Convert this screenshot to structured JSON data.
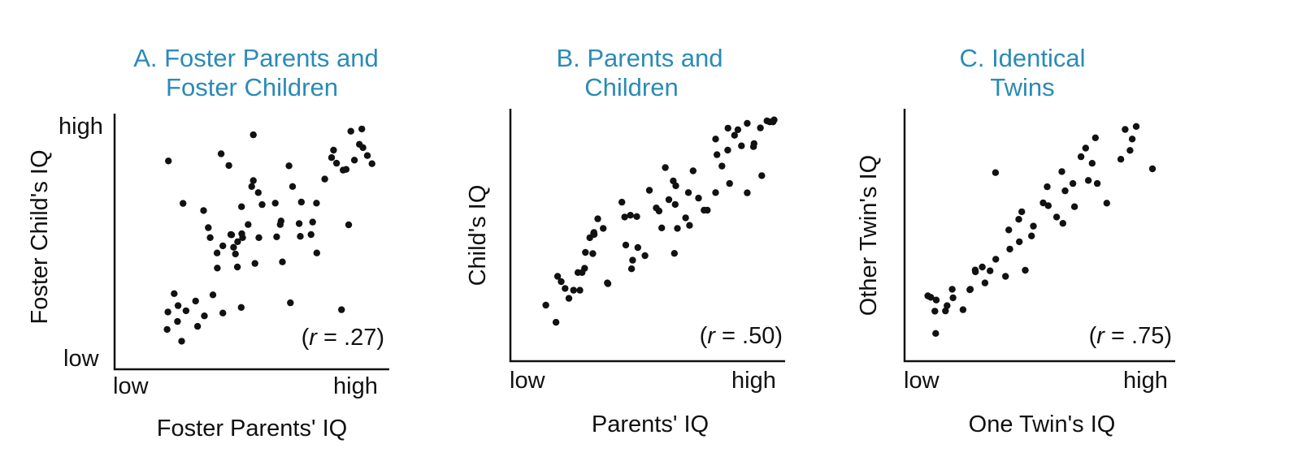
{
  "colors": {
    "title": "#2a8bb6",
    "ink": "#111111"
  },
  "chart_data": [
    {
      "type": "scatter",
      "title_lines": [
        "A. Foster Parents and",
        "Foster Children"
      ],
      "xlabel": "Foster Parents' IQ",
      "ylabel": "Foster Child's IQ",
      "xticks": [
        "low",
        "high"
      ],
      "yticks": [
        "high",
        "low"
      ],
      "annotation": {
        "prefix": "(",
        "var": "r",
        "value": " = .27)"
      },
      "xlim": [
        0,
        100
      ],
      "ylim": [
        0,
        100
      ],
      "points": [
        [
          19.6,
          81.5
        ],
        [
          22.9,
          18.7
        ],
        [
          21.7,
          29.6
        ],
        [
          24.9,
          64.9
        ],
        [
          23.1,
          24.9
        ],
        [
          24.4,
          11.0
        ],
        [
          19.1,
          15.6
        ],
        [
          19.4,
          22.4
        ],
        [
          38.8,
          84.3
        ],
        [
          41.6,
          79.7
        ],
        [
          46.2,
          63.6
        ],
        [
          48.6,
          56.6
        ],
        [
          44.8,
          49.9
        ],
        [
          50.5,
          73.8
        ],
        [
          52.3,
          69.1
        ],
        [
          50.5,
          91.7
        ],
        [
          32.4,
          62.1
        ],
        [
          34.1,
          55.4
        ],
        [
          34.8,
          51.5
        ],
        [
          37.3,
          45.5
        ],
        [
          37.4,
          39.6
        ],
        [
          39.4,
          48.3
        ],
        [
          42.3,
          52.7
        ],
        [
          42.6,
          52.6
        ],
        [
          43.3,
          47.7
        ],
        [
          44.0,
          45.1
        ],
        [
          44.7,
          40.0
        ],
        [
          46.3,
          53.0
        ],
        [
          46.6,
          51.5
        ],
        [
          52.5,
          51.5
        ],
        [
          53.7,
          64.4
        ],
        [
          60.3,
          56.6
        ],
        [
          59.0,
          51.8
        ],
        [
          61.1,
          42.0
        ],
        [
          63.5,
          79.6
        ],
        [
          64.8,
          71.5
        ],
        [
          68.0,
          65.4
        ],
        [
          67.6,
          52.0
        ],
        [
          71.5,
          52.7
        ],
        [
          72.1,
          57.6
        ],
        [
          73.6,
          45.5
        ],
        [
          76.5,
          74.4
        ],
        [
          79.7,
          85.7
        ],
        [
          79.0,
          82.8
        ],
        [
          80.8,
          80.6
        ],
        [
          83.2,
          77.9
        ],
        [
          84.3,
          78.2
        ],
        [
          85.2,
          56.5
        ],
        [
          87.3,
          81.8
        ],
        [
          89.1,
          88.0
        ],
        [
          86.0,
          93.1
        ],
        [
          90.4,
          86.7
        ],
        [
          92.0,
          83.6
        ],
        [
          93.7,
          80.4
        ],
        [
          90.0,
          94.0
        ],
        [
          82.6,
          23.3
        ],
        [
          64.0,
          26.0
        ],
        [
          46.1,
          24.2
        ],
        [
          39.4,
          22.0
        ],
        [
          32.7,
          20.9
        ],
        [
          30.2,
          16.8
        ],
        [
          29.5,
          26.7
        ],
        [
          26.0,
          22.9
        ],
        [
          35.8,
          29.1
        ],
        [
          51.1,
          41.4
        ],
        [
          58.5,
          65.0
        ],
        [
          67.2,
          57.0
        ],
        [
          73.5,
          65.0
        ],
        [
          60.6,
          58.0
        ],
        [
          49.9,
          71.5
        ]
      ]
    },
    {
      "type": "scatter",
      "title_lines": [
        "B. Parents and",
        "Children"
      ],
      "xlabel": "Parents' IQ",
      "ylabel": "Child's IQ",
      "xticks": [
        "low",
        "high"
      ],
      "yticks": [],
      "annotation": {
        "prefix": "(",
        "var": "r",
        "value": " = .50)"
      },
      "xlim": [
        0,
        100
      ],
      "ylim": [
        0,
        100
      ],
      "points": [
        [
          12.9,
          22.2
        ],
        [
          16.6,
          15.4
        ],
        [
          17.2,
          33.6
        ],
        [
          18.5,
          31.5
        ],
        [
          19.9,
          28.8
        ],
        [
          21.3,
          24.9
        ],
        [
          25.3,
          28.1
        ],
        [
          26.1,
          35.1
        ],
        [
          27.3,
          43.1
        ],
        [
          28.9,
          48.9
        ],
        [
          30.0,
          42.6
        ],
        [
          30.3,
          50.6
        ],
        [
          31.8,
          56.4
        ],
        [
          33.8,
          52.6
        ],
        [
          35.5,
          30.7
        ],
        [
          35.3,
          31.0
        ],
        [
          40.6,
          63.0
        ],
        [
          41.6,
          57.1
        ],
        [
          43.7,
          57.8
        ],
        [
          44.1,
          36.6
        ],
        [
          44.5,
          40.0
        ],
        [
          46.4,
          45.0
        ],
        [
          46.0,
          57.3
        ],
        [
          50.6,
          67.7
        ],
        [
          53.1,
          60.7
        ],
        [
          54.1,
          59.5
        ],
        [
          56.4,
          76.7
        ],
        [
          55.1,
          52.8
        ],
        [
          60.2,
          69.5
        ],
        [
          59.3,
          71.4
        ],
        [
          60.0,
          62.1
        ],
        [
          63.8,
          56.8
        ],
        [
          64.8,
          66.8
        ],
        [
          66.5,
          75.4
        ],
        [
          68.5,
          64.6
        ],
        [
          70.5,
          59.8
        ],
        [
          74.7,
          88.0
        ],
        [
          75.2,
          81.8
        ],
        [
          77.0,
          77.3
        ],
        [
          79.1,
          83.6
        ],
        [
          79.2,
          92.3
        ],
        [
          81.6,
          89.5
        ],
        [
          82.8,
          91.7
        ],
        [
          86.2,
          94.2
        ],
        [
          84.1,
          85.3
        ],
        [
          88.5,
          85.0
        ],
        [
          88.7,
          86.2
        ],
        [
          91.0,
          92.4
        ],
        [
          93.4,
          95.2
        ],
        [
          94.4,
          94.8
        ],
        [
          96.0,
          95.6
        ],
        [
          95.6,
          94.8
        ],
        [
          91.5,
          73.5
        ],
        [
          86.2,
          66.7
        ],
        [
          79.8,
          70.4
        ],
        [
          74.7,
          66.8
        ],
        [
          71.7,
          59.8
        ],
        [
          65.2,
          53.8
        ],
        [
          60.8,
          52.6
        ],
        [
          59.7,
          42.7
        ],
        [
          57.7,
          64.0
        ],
        [
          49.0,
          41.8
        ],
        [
          42.0,
          46.0
        ],
        [
          30.4,
          51.0
        ],
        [
          30.5,
          50.2
        ],
        [
          23.0,
          28.1
        ],
        [
          24.6,
          35.1
        ],
        [
          27.0,
          36.8
        ]
      ]
    },
    {
      "type": "scatter",
      "title_lines": [
        "C. Identical",
        "Twins"
      ],
      "xlabel": "One Twin's IQ",
      "ylabel": "Other Twin's IQ",
      "xticks": [
        "low",
        "high"
      ],
      "yticks": [],
      "annotation": {
        "prefix": "(",
        "var": "r",
        "value": " = .75)"
      },
      "xlim": [
        0,
        100
      ],
      "ylim": [
        0,
        100
      ],
      "points": [
        [
          8.6,
          25.9
        ],
        [
          11.2,
          19.8
        ],
        [
          11.7,
          24.2
        ],
        [
          11.5,
          11.0
        ],
        [
          15.1,
          19.9
        ],
        [
          17.6,
          28.5
        ],
        [
          21.6,
          20.4
        ],
        [
          24.1,
          28.3
        ],
        [
          26.2,
          35.4
        ],
        [
          28.7,
          37.3
        ],
        [
          29.7,
          31.0
        ],
        [
          31.6,
          35.8
        ],
        [
          33.6,
          74.7
        ],
        [
          33.7,
          40.4
        ],
        [
          37.3,
          33.6
        ],
        [
          38.9,
          44.4
        ],
        [
          38.5,
          52.0
        ],
        [
          42.2,
          56.2
        ],
        [
          42.4,
          47.3
        ],
        [
          43.3,
          59.2
        ],
        [
          46.9,
          49.6
        ],
        [
          47.6,
          53.5
        ],
        [
          51.2,
          62.7
        ],
        [
          53.1,
          61.6
        ],
        [
          52.7,
          69.1
        ],
        [
          56.2,
          57.1
        ],
        [
          58.1,
          75.1
        ],
        [
          59.3,
          67.5
        ],
        [
          62.2,
          70.4
        ],
        [
          62.8,
          61.2
        ],
        [
          65.2,
          81.0
        ],
        [
          66.9,
          84.4
        ],
        [
          67.9,
          71.6
        ],
        [
          69.3,
          78.4
        ],
        [
          70.5,
          88.5
        ],
        [
          71.2,
          70.4
        ],
        [
          74.7,
          62.6
        ],
        [
          79.9,
          80.0
        ],
        [
          81.5,
          91.8
        ],
        [
          84.1,
          88.0
        ],
        [
          83.3,
          83.5
        ],
        [
          85.6,
          93.0
        ],
        [
          91.6,
          76.2
        ],
        [
          58.5,
          54.6
        ],
        [
          44.6,
          36.0
        ],
        [
          26.1,
          36.1
        ],
        [
          24.3,
          28.5
        ],
        [
          17.9,
          25.1
        ],
        [
          15.7,
          22.0
        ],
        [
          9.7,
          25.3
        ]
      ]
    }
  ]
}
